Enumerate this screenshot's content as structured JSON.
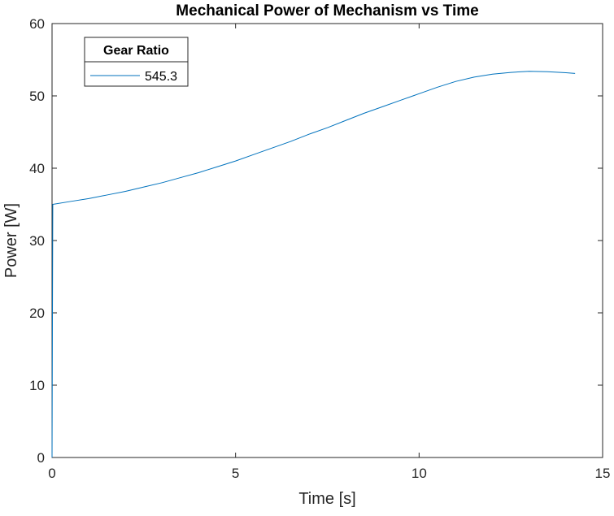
{
  "chart_data": {
    "type": "line",
    "title": "Mechanical Power of Mechanism vs Time",
    "xlabel": "Time [s]",
    "ylabel": "Power [W]",
    "xlim": [
      0,
      15
    ],
    "ylim": [
      0,
      60
    ],
    "x_ticks": [
      0,
      5,
      10,
      15
    ],
    "y_ticks": [
      0,
      10,
      20,
      30,
      40,
      50,
      60
    ],
    "grid": false,
    "legend": {
      "title": "Gear Ratio",
      "placement": "top-left"
    },
    "series": [
      {
        "name": "545.3",
        "color": "#0072BD",
        "x": [
          0,
          0.02,
          0.5,
          1,
          1.5,
          2,
          2.5,
          3,
          3.5,
          4,
          4.5,
          5,
          5.5,
          6,
          6.5,
          7,
          7.5,
          8,
          8.5,
          9,
          9.5,
          10,
          10.5,
          11,
          11.5,
          12,
          12.5,
          13,
          13.5,
          14,
          14.25
        ],
        "y": [
          0,
          35.0,
          35.4,
          35.8,
          36.3,
          36.8,
          37.4,
          38.0,
          38.7,
          39.4,
          40.2,
          41.0,
          41.9,
          42.8,
          43.7,
          44.7,
          45.6,
          46.6,
          47.6,
          48.5,
          49.4,
          50.3,
          51.2,
          52.0,
          52.6,
          53.0,
          53.25,
          53.4,
          53.35,
          53.2,
          53.1
        ]
      }
    ]
  }
}
